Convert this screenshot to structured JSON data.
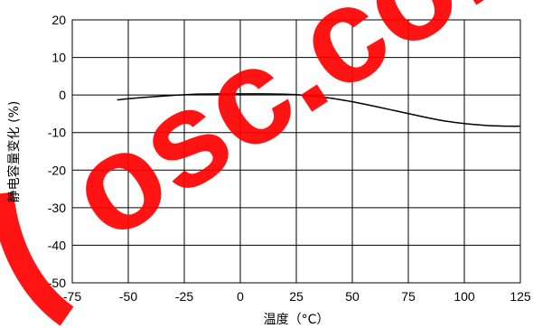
{
  "chart_data": {
    "type": "line",
    "title": "",
    "xlabel": "温度（°C）",
    "ylabel": "静电容量变化 (%)",
    "xlim": [
      -75,
      125
    ],
    "ylim": [
      -50,
      20
    ],
    "x_ticks": [
      -75,
      -50,
      -25,
      0,
      25,
      50,
      75,
      100,
      125
    ],
    "y_ticks": [
      20,
      10,
      0,
      -10,
      -20,
      -30,
      -40,
      -50
    ],
    "grid": true,
    "legend": "none",
    "series": [
      {
        "x": [
          -55,
          -50,
          -40,
          -30,
          -20,
          -10,
          0,
          10,
          20,
          25,
          30,
          40,
          50,
          60,
          70,
          80,
          90,
          100,
          110,
          120,
          125
        ],
        "y": [
          -1.3,
          -1.0,
          -0.5,
          -0.1,
          0.2,
          0.3,
          0.3,
          0.3,
          0.2,
          0.1,
          -0.2,
          -0.8,
          -1.8,
          -3.0,
          -4.3,
          -5.6,
          -6.8,
          -7.6,
          -8.1,
          -8.3,
          -8.3
        ]
      }
    ]
  },
  "watermark": {
    "text": "osc.com",
    "color": "#ff0000"
  },
  "colors": {
    "grid": "#000000",
    "line": "#000000",
    "text": "#000000"
  }
}
